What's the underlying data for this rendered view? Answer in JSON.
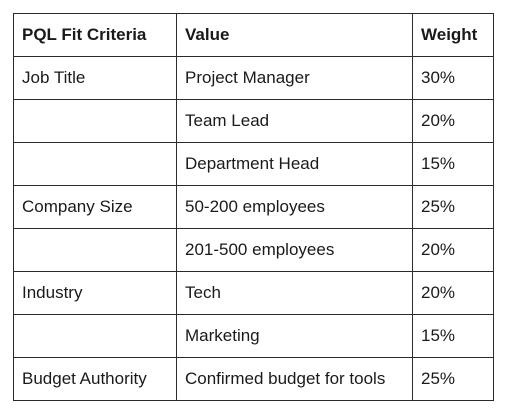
{
  "table": {
    "headers": [
      "PQL Fit Criteria",
      "Value",
      "Weight"
    ],
    "rows": [
      {
        "criteria": "Job Title",
        "value": "Project Manager",
        "weight": "30%"
      },
      {
        "criteria": "",
        "value": "Team Lead",
        "weight": "20%"
      },
      {
        "criteria": "",
        "value": "Department Head",
        "weight": "15%"
      },
      {
        "criteria": "Company Size",
        "value": "50-200 employees",
        "weight": "25%"
      },
      {
        "criteria": "",
        "value": "201-500 employees",
        "weight": "20%"
      },
      {
        "criteria": "Industry",
        "value": "Tech",
        "weight": "20%"
      },
      {
        "criteria": "",
        "value": "Marketing",
        "weight": "15%"
      },
      {
        "criteria": "Budget Authority",
        "value": "Confirmed budget for tools",
        "weight": "25%"
      }
    ]
  }
}
